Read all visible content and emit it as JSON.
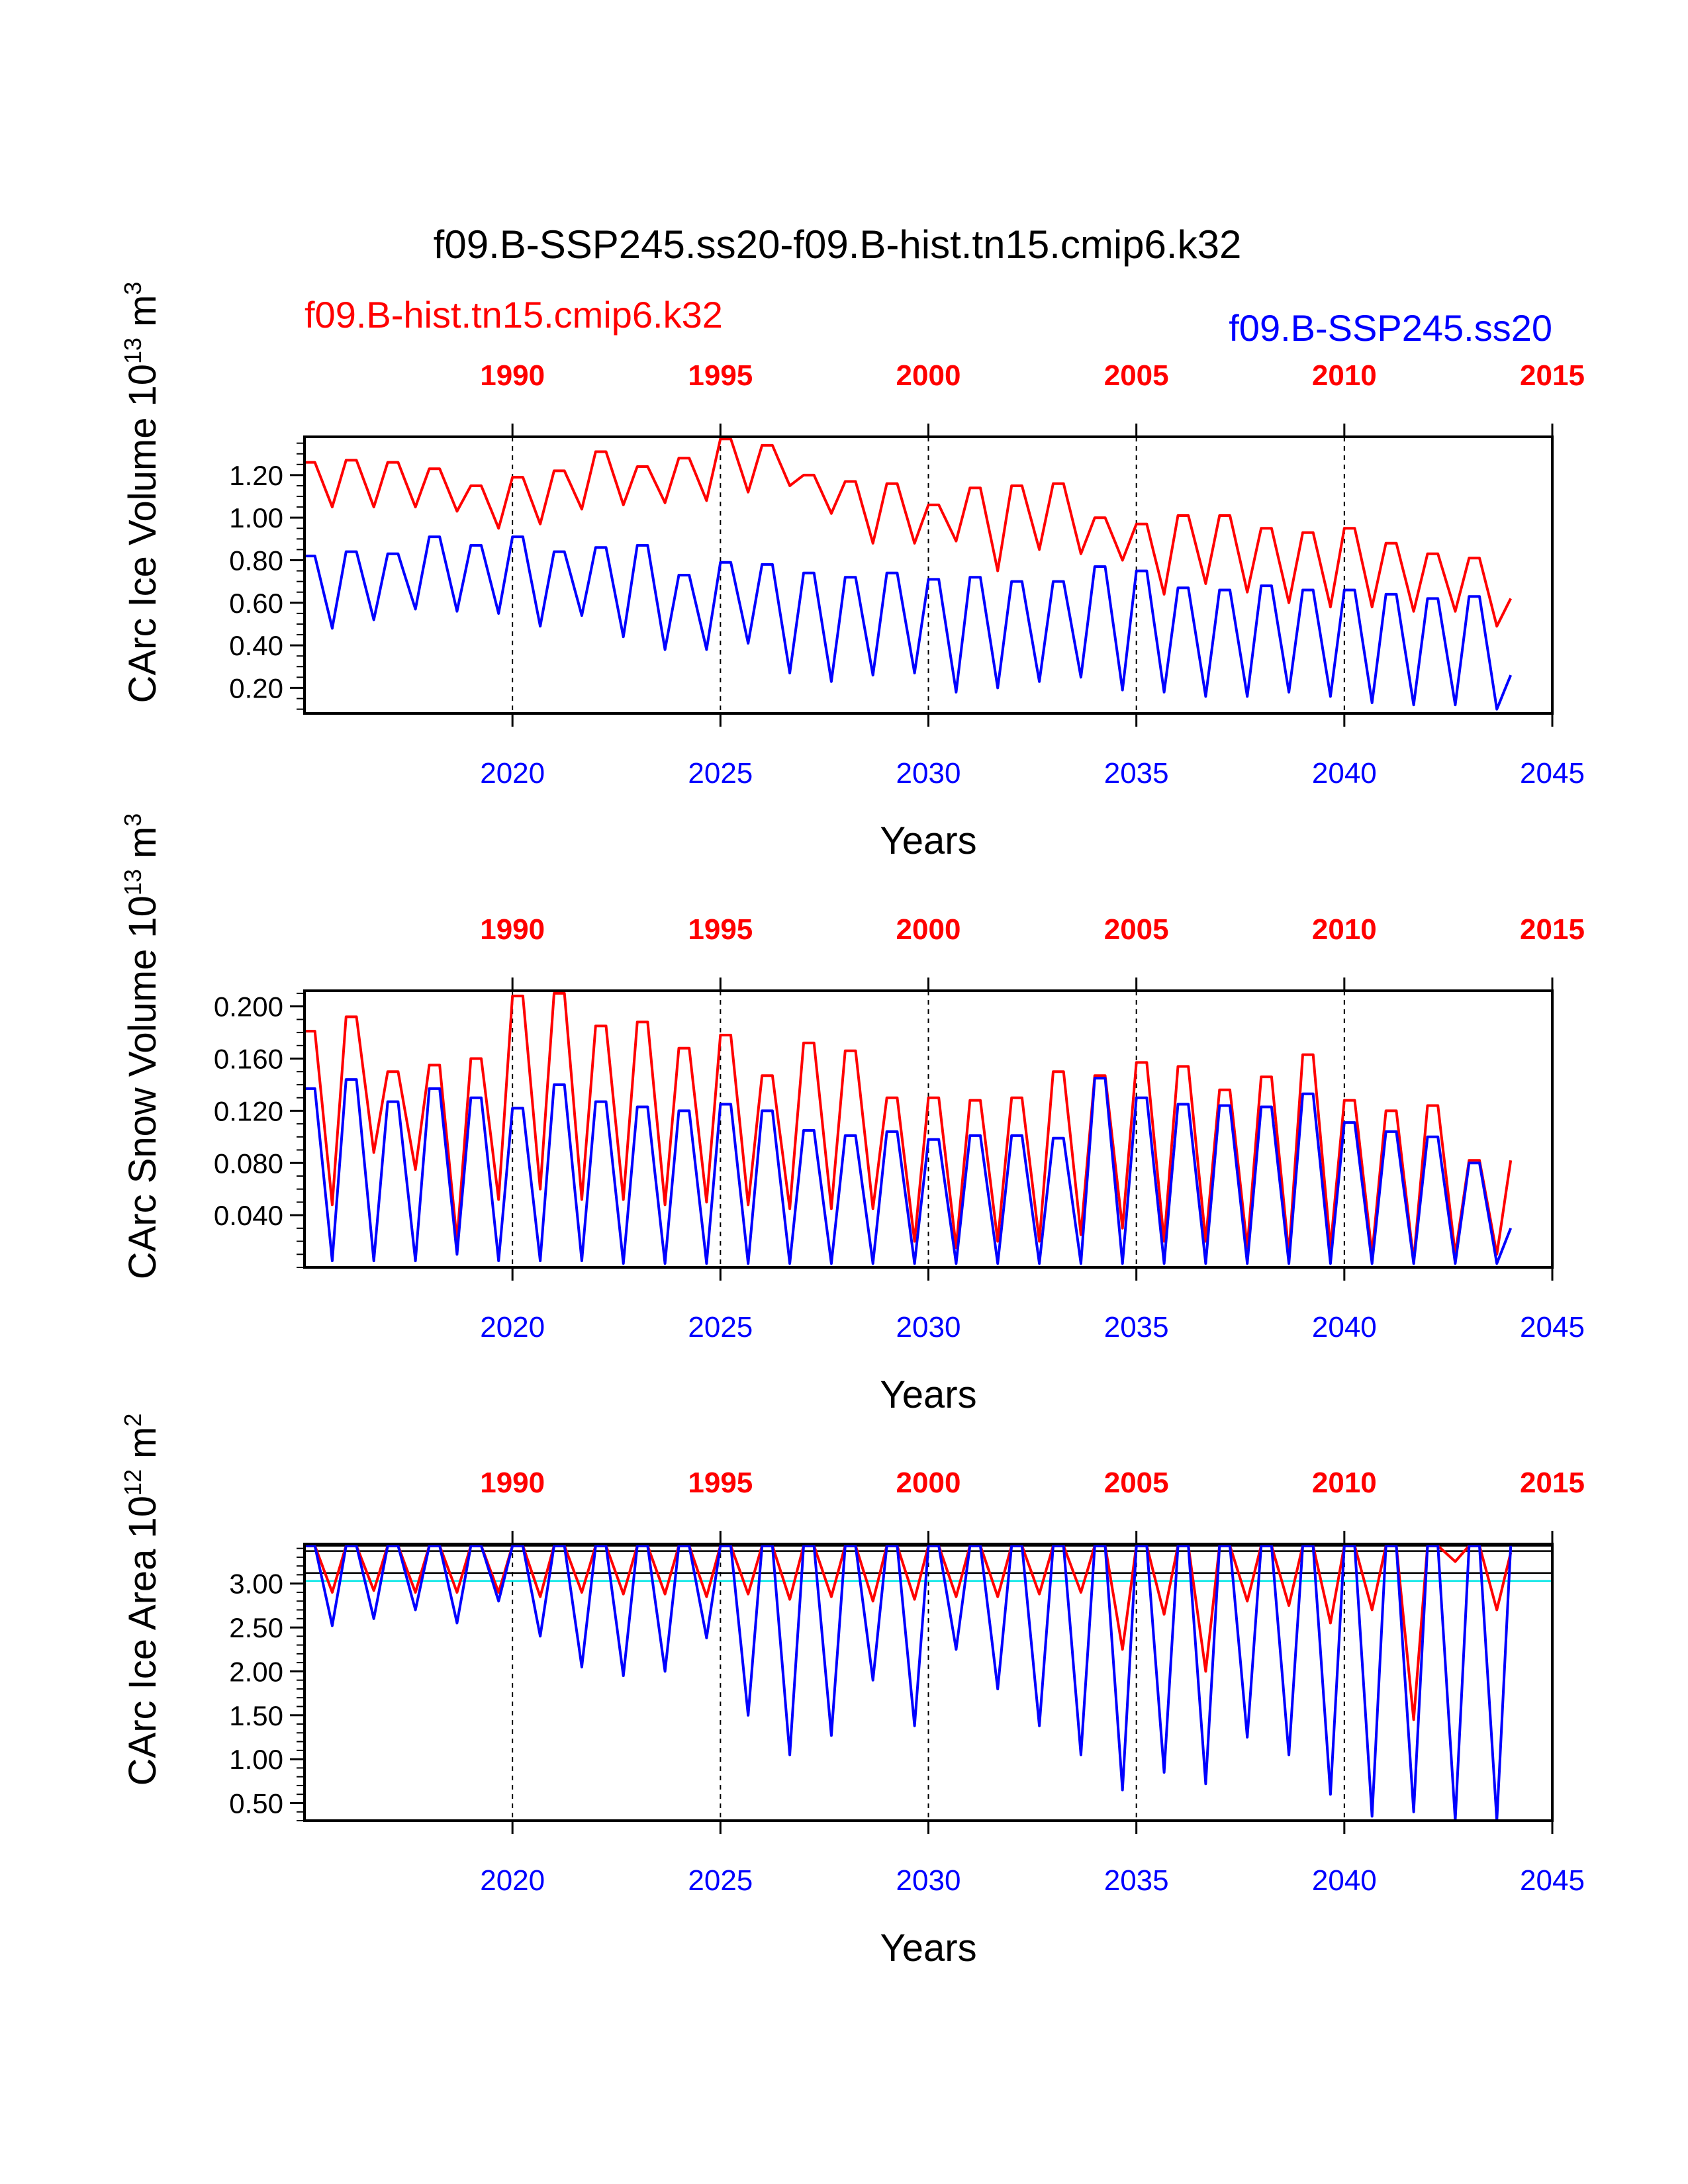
{
  "title": "f09.B-SSP245.ss20-f09.B-hist.tn15.cmip6.k32",
  "legend": {
    "hist_label": "f09.B-hist.tn15.cmip6.k32",
    "ssp_label": "f09.B-SSP245.ss20"
  },
  "colors": {
    "hist": "#ff0000",
    "ssp": "#0000ff",
    "reference_black": "#000000",
    "reference_cyan": "#00e5e5"
  },
  "chart_data": [
    {
      "type": "line",
      "id": "ice_volume",
      "ylabel": "CArc Ice Volume",
      "ylabel_unit_base": "10",
      "ylabel_unit_exp": "13",
      "ylabel_unit_tail": "m",
      "ylabel_unit_tail_exp": "3",
      "xlabel": "Years",
      "ylim": [
        0.08,
        1.38
      ],
      "yticks": [
        0.2,
        0.4,
        0.6,
        0.8,
        1.0,
        1.2
      ],
      "ytick_labels": [
        "0.20",
        "0.40",
        "0.60",
        "0.80",
        "1.00",
        "1.20"
      ],
      "yminor": 0.05,
      "x_bottom": {
        "range": [
          2015,
          2045
        ],
        "ticks": [
          2020,
          2025,
          2030,
          2035,
          2040,
          2045
        ],
        "labels": [
          "2020",
          "2025",
          "2030",
          "2035",
          "2040",
          "2045"
        ]
      },
      "x_top": {
        "range": [
          1985,
          2015
        ],
        "ticks": [
          1990,
          1995,
          2000,
          2005,
          2010,
          2015
        ],
        "labels": [
          "1990",
          "1995",
          "2000",
          "2005",
          "2010",
          "2015"
        ]
      },
      "series": [
        {
          "key": "hist",
          "seasonal": {
            "max": [
              1.26,
              1.27,
              1.26,
              1.23,
              1.15,
              1.19,
              1.22,
              1.31,
              1.24,
              1.28,
              1.37,
              1.34,
              1.2,
              1.17,
              1.16,
              1.06,
              1.14,
              1.15,
              1.16,
              1.0,
              0.97,
              1.01,
              1.01,
              0.95,
              0.93,
              0.95,
              0.88,
              0.83,
              0.81
            ],
            "min": [
              1.05,
              1.05,
              1.05,
              1.03,
              0.95,
              0.97,
              1.04,
              1.06,
              1.07,
              1.08,
              1.12,
              1.15,
              1.02,
              0.88,
              0.88,
              0.89,
              0.75,
              0.85,
              0.83,
              0.8,
              0.64,
              0.69,
              0.65,
              0.6,
              0.58,
              0.58,
              0.56,
              0.56,
              0.49
            ],
            "end": 0.62
          }
        },
        {
          "key": "ssp",
          "seasonal": {
            "max": [
              0.82,
              0.84,
              0.83,
              0.91,
              0.87,
              0.91,
              0.84,
              0.86,
              0.87,
              0.73,
              0.79,
              0.78,
              0.74,
              0.72,
              0.74,
              0.71,
              0.72,
              0.7,
              0.7,
              0.77,
              0.75,
              0.67,
              0.66,
              0.68,
              0.66,
              0.66,
              0.64,
              0.62,
              0.63
            ],
            "min": [
              0.48,
              0.52,
              0.57,
              0.56,
              0.55,
              0.49,
              0.54,
              0.44,
              0.38,
              0.38,
              0.41,
              0.27,
              0.23,
              0.26,
              0.27,
              0.18,
              0.2,
              0.23,
              0.25,
              0.19,
              0.18,
              0.16,
              0.16,
              0.18,
              0.16,
              0.13,
              0.12,
              0.12,
              0.1
            ],
            "end": 0.26
          }
        }
      ],
      "vlines_x": [
        2020,
        2025,
        2030,
        2035,
        2040
      ]
    },
    {
      "type": "line",
      "id": "snow_volume",
      "ylabel": "CArc Snow Volume",
      "ylabel_unit_base": "10",
      "ylabel_unit_exp": "13",
      "ylabel_unit_tail": "m",
      "ylabel_unit_tail_exp": "3",
      "xlabel": "Years",
      "ylim": [
        0.0,
        0.212
      ],
      "yticks": [
        0.04,
        0.08,
        0.12,
        0.16,
        0.2
      ],
      "ytick_labels": [
        "0.040",
        "0.080",
        "0.120",
        "0.160",
        "0.200"
      ],
      "yminor": 0.01,
      "x_bottom": {
        "range": [
          2015,
          2045
        ],
        "ticks": [
          2020,
          2025,
          2030,
          2035,
          2040,
          2045
        ],
        "labels": [
          "2020",
          "2025",
          "2030",
          "2035",
          "2040",
          "2045"
        ]
      },
      "x_top": {
        "range": [
          1985,
          2015
        ],
        "ticks": [
          1990,
          1995,
          2000,
          2005,
          2010,
          2015
        ],
        "labels": [
          "1990",
          "1995",
          "2000",
          "2005",
          "2010",
          "2015"
        ]
      },
      "series": [
        {
          "key": "hist",
          "seasonal": {
            "max": [
              0.181,
              0.192,
              0.15,
              0.155,
              0.16,
              0.208,
              0.21,
              0.185,
              0.188,
              0.168,
              0.178,
              0.147,
              0.172,
              0.166,
              0.13,
              0.13,
              0.128,
              0.13,
              0.15,
              0.147,
              0.157,
              0.154,
              0.136,
              0.146,
              0.163,
              0.128,
              0.12,
              0.124,
              0.082
            ],
            "min": [
              0.048,
              0.088,
              0.075,
              0.02,
              0.052,
              0.06,
              0.052,
              0.052,
              0.048,
              0.05,
              0.048,
              0.045,
              0.045,
              0.045,
              0.02,
              0.015,
              0.02,
              0.02,
              0.025,
              0.03,
              0.02,
              0.02,
              0.015,
              0.01,
              0.015,
              0.01,
              0.005,
              0.01,
              0.01
            ],
            "end": 0.082
          }
        },
        {
          "key": "ssp",
          "seasonal": {
            "max": [
              0.137,
              0.144,
              0.127,
              0.137,
              0.13,
              0.122,
              0.14,
              0.127,
              0.123,
              0.12,
              0.125,
              0.12,
              0.105,
              0.101,
              0.104,
              0.098,
              0.101,
              0.101,
              0.099,
              0.145,
              0.13,
              0.125,
              0.124,
              0.123,
              0.133,
              0.111,
              0.104,
              0.1,
              0.08
            ],
            "min": [
              0.005,
              0.005,
              0.005,
              0.01,
              0.005,
              0.005,
              0.005,
              0.003,
              0.003,
              0.003,
              0.003,
              0.003,
              0.003,
              0.003,
              0.003,
              0.003,
              0.003,
              0.003,
              0.003,
              0.003,
              0.003,
              0.003,
              0.003,
              0.003,
              0.003,
              0.003,
              0.003,
              0.003,
              0.003
            ],
            "end": 0.03
          }
        }
      ],
      "vlines_x": [
        2020,
        2025,
        2030,
        2035,
        2040
      ]
    },
    {
      "type": "line",
      "id": "ice_area",
      "ylabel": "CArc Ice Area",
      "ylabel_unit_base": "10",
      "ylabel_unit_exp": "12",
      "ylabel_unit_tail": "m",
      "ylabel_unit_tail_exp": "2",
      "xlabel": "Years",
      "ylim": [
        0.3,
        3.45
      ],
      "yticks": [
        0.5,
        1.0,
        1.5,
        2.0,
        2.5,
        3.0
      ],
      "ytick_labels": [
        "0.50",
        "1.00",
        "1.50",
        "2.00",
        "2.50",
        "3.00"
      ],
      "yminor": 0.1,
      "x_bottom": {
        "range": [
          2015,
          2045
        ],
        "ticks": [
          2020,
          2025,
          2030,
          2035,
          2040,
          2045
        ],
        "labels": [
          "2020",
          "2025",
          "2030",
          "2035",
          "2040",
          "2045"
        ]
      },
      "x_top": {
        "range": [
          1985,
          2015
        ],
        "ticks": [
          1990,
          1995,
          2000,
          2005,
          2010,
          2015
        ],
        "labels": [
          "1990",
          "1995",
          "2000",
          "2005",
          "2010",
          "2015"
        ]
      },
      "hlines": [
        {
          "y": 3.43,
          "color": "reference_black"
        },
        {
          "y": 3.37,
          "color": "reference_black"
        },
        {
          "y": 3.12,
          "color": "reference_black"
        },
        {
          "y": 3.03,
          "color": "reference_cyan"
        }
      ],
      "series": [
        {
          "key": "hist",
          "seasonal": {
            "max": [
              3.43,
              3.43,
              3.43,
              3.43,
              3.43,
              3.43,
              3.43,
              3.43,
              3.43,
              3.43,
              3.43,
              3.43,
              3.43,
              3.43,
              3.43,
              3.43,
              3.43,
              3.43,
              3.43,
              3.43,
              3.43,
              3.43,
              3.43,
              3.43,
              3.43,
              3.43,
              3.43,
              3.43,
              3.43
            ],
            "min": [
              2.9,
              2.92,
              2.9,
              2.9,
              2.9,
              2.85,
              2.9,
              2.88,
              2.88,
              2.85,
              2.88,
              2.82,
              2.85,
              2.8,
              2.82,
              2.85,
              2.85,
              2.88,
              2.9,
              2.25,
              2.65,
              2.0,
              2.8,
              2.75,
              2.55,
              2.7,
              1.45,
              3.25,
              2.7
            ],
            "end": 3.35
          }
        },
        {
          "key": "ssp",
          "seasonal": {
            "max": [
              3.43,
              3.43,
              3.43,
              3.43,
              3.43,
              3.43,
              3.43,
              3.43,
              3.43,
              3.43,
              3.43,
              3.43,
              3.43,
              3.43,
              3.43,
              3.43,
              3.43,
              3.43,
              3.43,
              3.43,
              3.43,
              3.43,
              3.43,
              3.43,
              3.43,
              3.43,
              3.43,
              3.43,
              3.43
            ],
            "min": [
              2.52,
              2.6,
              2.7,
              2.55,
              2.8,
              2.4,
              2.05,
              1.95,
              2.0,
              2.38,
              1.5,
              1.05,
              1.27,
              1.9,
              1.38,
              2.25,
              1.8,
              1.38,
              1.05,
              0.65,
              0.85,
              0.72,
              1.25,
              1.05,
              0.6,
              0.35,
              0.4,
              0.3,
              0.3
            ],
            "end": 3.43
          }
        }
      ],
      "vlines_x": [
        2020,
        2025,
        2030,
        2035,
        2040
      ]
    }
  ]
}
